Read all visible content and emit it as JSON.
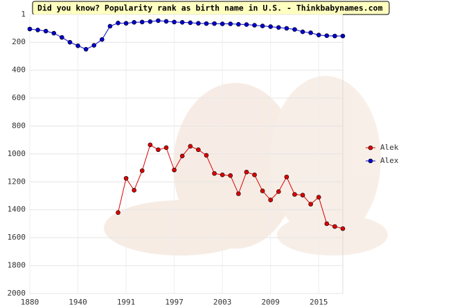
{
  "chart_data": {
    "type": "line",
    "title": "Did you know? Popularity rank as birth name in U.S. - Thinkbabynames.com",
    "categories": [
      "1880",
      null,
      null,
      null,
      null,
      null,
      "1940",
      null,
      null,
      null,
      null,
      null,
      "1991",
      null,
      null,
      null,
      null,
      null,
      "1997",
      null,
      null,
      null,
      null,
      null,
      "2003",
      null,
      null,
      null,
      null,
      null,
      "2009",
      null,
      null,
      null,
      null,
      null,
      "2015",
      null,
      null,
      null
    ],
    "series": [
      {
        "name": "Alek",
        "color": "#dd0000",
        "values": [
          null,
          null,
          null,
          null,
          null,
          null,
          null,
          null,
          null,
          null,
          null,
          1420,
          1175,
          1260,
          1120,
          935,
          970,
          955,
          1115,
          1015,
          945,
          970,
          1010,
          1140,
          1150,
          1155,
          1285,
          1130,
          1150,
          1265,
          1330,
          1270,
          1165,
          1290,
          1295,
          1360,
          1310,
          1500,
          1520,
          1535
        ]
      },
      {
        "name": "Alex",
        "color": "#0000cc",
        "values": [
          105,
          112,
          120,
          135,
          165,
          200,
          225,
          250,
          222,
          180,
          85,
          62,
          64,
          57,
          55,
          52,
          45,
          50,
          55,
          57,
          60,
          64,
          66,
          66,
          68,
          68,
          71,
          73,
          78,
          83,
          88,
          94,
          100,
          108,
          125,
          132,
          148,
          153,
          155,
          155
        ]
      }
    ],
    "ylim": [
      2000,
      1
    ],
    "yticks": [
      1,
      200,
      400,
      600,
      800,
      1000,
      1200,
      1400,
      1600,
      1800,
      2000
    ],
    "grid": true,
    "legend": "right"
  }
}
